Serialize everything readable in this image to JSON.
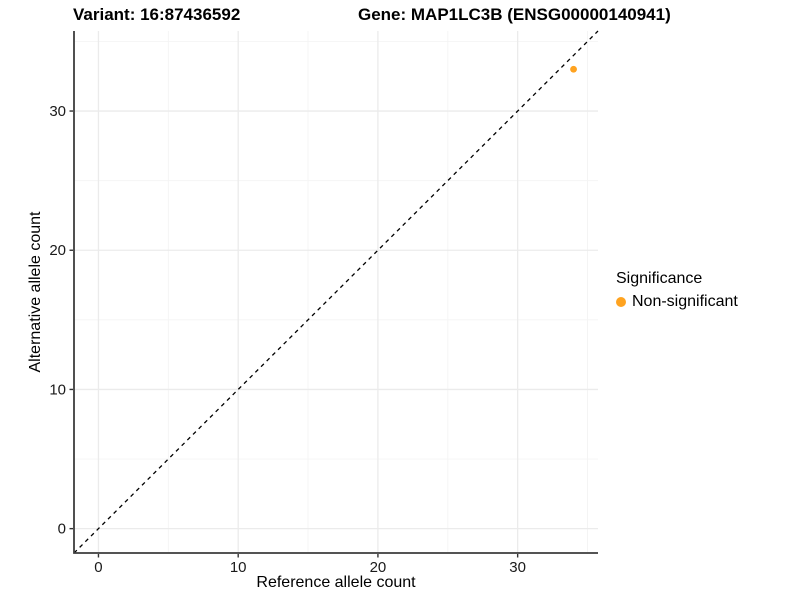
{
  "header": {
    "variant_title": "Variant: 16:87436592",
    "gene_title": "Gene: MAP1LC3B (ENSG00000140941)"
  },
  "chart_data": {
    "type": "scatter",
    "points": [
      {
        "x": 34,
        "y": 33,
        "series": "Non-significant"
      }
    ],
    "xlabel": "Reference allele count",
    "ylabel": "Alternative allele count",
    "xlim": [
      -1.75,
      35.75
    ],
    "ylim": [
      -1.75,
      35.75
    ],
    "x_ticks": [
      0,
      10,
      20,
      30
    ],
    "y_ticks": [
      0,
      10,
      20,
      30
    ],
    "x_minor_gridlines": [
      5,
      15,
      25,
      35
    ],
    "y_minor_gridlines": [
      5,
      15,
      25,
      35
    ],
    "grid": true,
    "identity_line": {
      "slope": 1,
      "intercept": 0,
      "style": "dashed",
      "color": "#000000"
    },
    "legend": {
      "title": "Significance",
      "position": "right",
      "items": [
        {
          "label": "Non-significant",
          "color": "#FFA320"
        }
      ]
    },
    "style": {
      "major_grid_color": "#ebebeb",
      "minor_grid_color": "#f4f4f4",
      "axis_line_color": "#3d3d3d",
      "tick_color": "#333333",
      "tick_label_color": "#1a1a1a",
      "point_radius": 3.4
    }
  }
}
